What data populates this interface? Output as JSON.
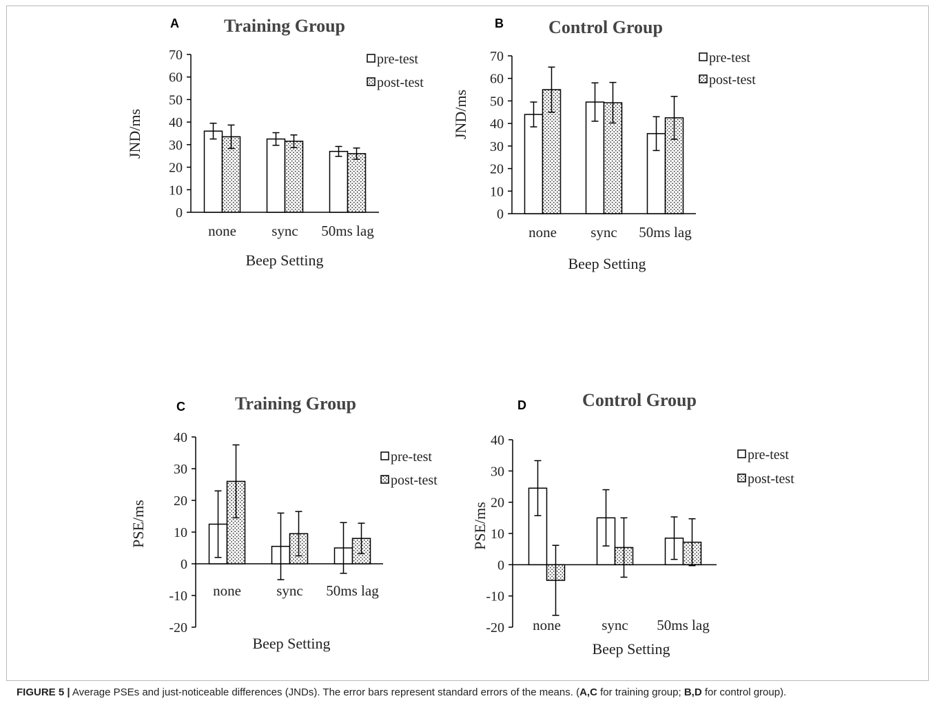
{
  "caption": {
    "label": "FIGURE 5 |",
    "text_1": " Average PSEs and just-noticeable differences (JNDs). The error bars represent standard errors of the means. (",
    "bold_1": "A,C",
    "text_2": " for training group; ",
    "bold_2": "B,D",
    "text_3": " for control group)."
  },
  "chart_data": [
    {
      "panel": "A",
      "type": "bar",
      "title": "Training Group",
      "xlabel": "Beep Setting",
      "ylabel": "JND/ms",
      "ylim": [
        0,
        70
      ],
      "yticks": [
        0,
        10,
        20,
        30,
        40,
        50,
        60,
        70
      ],
      "categories": [
        "none",
        "sync",
        "50ms lag"
      ],
      "series": [
        {
          "name": "pre-test",
          "values": [
            36,
            32.5,
            27
          ],
          "err": [
            3.5,
            2.8,
            2.2
          ]
        },
        {
          "name": "post-test",
          "values": [
            33.5,
            31.5,
            26
          ],
          "err": [
            5.2,
            2.8,
            2.5
          ]
        }
      ],
      "legend": "top-right"
    },
    {
      "panel": "B",
      "type": "bar",
      "title": "Control Group",
      "xlabel": "Beep Setting",
      "ylabel": "JND/ms",
      "ylim": [
        0,
        70
      ],
      "yticks": [
        0,
        10,
        20,
        30,
        40,
        50,
        60,
        70
      ],
      "categories": [
        "none",
        "sync",
        "50ms lag"
      ],
      "series": [
        {
          "name": "pre-test",
          "values": [
            44,
            49.5,
            35.5
          ],
          "err": [
            5.5,
            8.5,
            7.5
          ]
        },
        {
          "name": "post-test",
          "values": [
            55,
            49.2,
            42.5
          ],
          "err": [
            10,
            9,
            9.5
          ]
        }
      ],
      "legend": "top-right"
    },
    {
      "panel": "C",
      "type": "bar",
      "title": "Training Group",
      "xlabel": "Beep Setting",
      "ylabel": "PSE/ms",
      "ylim": [
        -20,
        40
      ],
      "yticks": [
        -20,
        -10,
        0,
        10,
        20,
        30,
        40
      ],
      "categories": [
        "none",
        "sync",
        "50ms lag"
      ],
      "series": [
        {
          "name": "pre-test",
          "values": [
            12.5,
            5.5,
            5
          ],
          "err": [
            10.5,
            10.5,
            8
          ]
        },
        {
          "name": "post-test",
          "values": [
            26,
            9.5,
            8
          ],
          "err": [
            11.5,
            7,
            4.8
          ]
        }
      ],
      "legend": "right"
    },
    {
      "panel": "D",
      "type": "bar",
      "title": "Control Group",
      "xlabel": "Beep Setting",
      "ylabel": "PSE/ms",
      "ylim": [
        -20,
        40
      ],
      "yticks": [
        -20,
        -10,
        0,
        10,
        20,
        30,
        40
      ],
      "categories": [
        "none",
        "sync",
        "50ms lag"
      ],
      "series": [
        {
          "name": "pre-test",
          "values": [
            24.5,
            15,
            8.5
          ],
          "err": [
            8.8,
            9,
            6.8
          ]
        },
        {
          "name": "post-test",
          "values": [
            -5,
            5.5,
            7.2
          ],
          "err": [
            11.2,
            9.5,
            7.5
          ]
        }
      ],
      "legend": "right"
    }
  ]
}
